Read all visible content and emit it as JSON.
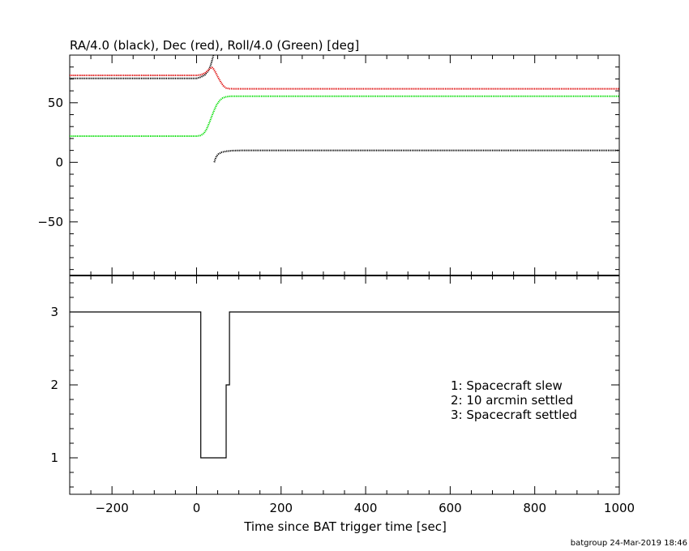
{
  "chart_data": [
    {
      "type": "line",
      "title": "RA/4.0 (black), Dec (red), Roll/4.0 (Green) [deg]",
      "xlim": [
        -300,
        1000
      ],
      "ylim": [
        -95,
        90
      ],
      "yticks": [
        -50,
        0,
        50
      ],
      "grid": false,
      "series": [
        {
          "color": "#000000",
          "segments": [
            {
              "x": [
                -300,
                -100,
                0,
                10,
                20,
                28,
                33,
                37,
                40
              ],
              "y": [
                70.5,
                70.5,
                70.5,
                71.5,
                73.5,
                77,
                81,
                86,
                90
              ]
            },
            {
              "x": [
                42,
                44,
                47,
                52,
                60,
                70,
                85,
                110,
                200,
                400,
                600,
                800,
                1000
              ],
              "y": [
                0,
                2.5,
                5,
                7,
                8.5,
                9.3,
                9.8,
                10,
                10,
                10,
                10,
                10,
                10
              ]
            }
          ]
        },
        {
          "color": "#dd0000",
          "segments": [
            {
              "x": [
                -300,
                -100,
                0,
                10,
                20,
                28,
                33,
                37,
                40,
                45,
                50,
                57,
                64,
                70,
                78,
                90,
                120,
                200,
                400,
                600,
                800,
                1000
              ],
              "y": [
                73,
                73,
                73,
                73.5,
                75,
                77.5,
                79,
                79.5,
                78.5,
                75.5,
                72,
                67.5,
                64,
                62.3,
                61.8,
                61.7,
                61.7,
                61.7,
                61.7,
                61.7,
                61.7,
                61.7
              ]
            }
          ]
        },
        {
          "color": "#00dd00",
          "segments": [
            {
              "x": [
                -300,
                -100,
                0,
                10,
                18,
                24,
                30,
                36,
                42,
                48,
                55,
                62,
                70,
                80,
                100,
                200,
                400,
                600,
                800,
                1000
              ],
              "y": [
                22,
                22,
                22,
                22.5,
                24.5,
                28,
                33,
                38.5,
                44,
                48.5,
                52,
                54,
                55,
                55.5,
                55.5,
                55.5,
                55.5,
                55.5,
                55.5,
                55.5
              ]
            }
          ]
        }
      ]
    },
    {
      "type": "line",
      "xlim": [
        -300,
        1000
      ],
      "ylim": [
        0.5,
        3.5
      ],
      "yticks": [
        1,
        2,
        3
      ],
      "xticks": [
        -200,
        0,
        200,
        400,
        600,
        800,
        1000
      ],
      "xlabel": "Time since BAT trigger time [sec]",
      "legend_position": "right",
      "legend": [
        "1: Spacecraft slew",
        "2: 10 arcmin settled",
        "3: Spacecraft settled"
      ],
      "series": [
        {
          "color": "#000000",
          "step": true,
          "x": [
            -300,
            10,
            10,
            70,
            70,
            78,
            78,
            1000
          ],
          "y": [
            3,
            3,
            1,
            1,
            2,
            2,
            3,
            3
          ]
        }
      ]
    }
  ],
  "footer": "batgroup 24-Mar-2019 18:46"
}
